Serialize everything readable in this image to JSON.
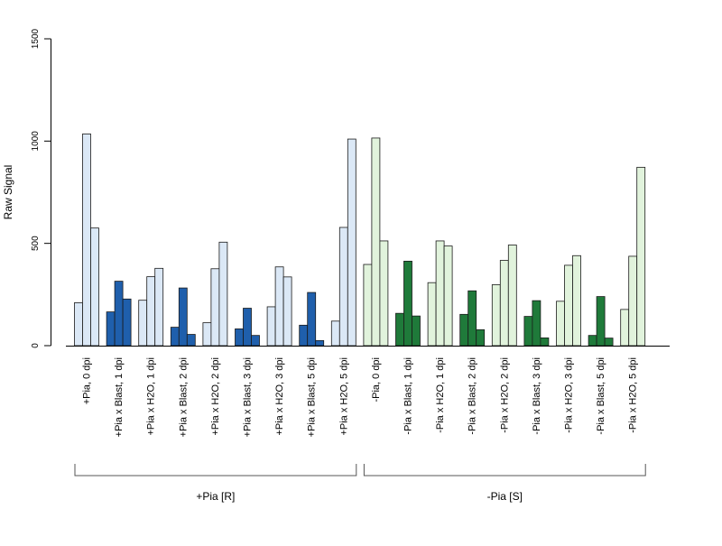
{
  "chart_data": {
    "type": "bar",
    "ylabel": "Raw Signal",
    "ylim": [
      0,
      1500
    ],
    "y_ticks": [
      0,
      500,
      1000,
      1500
    ],
    "grid": false,
    "legend": "none",
    "bars_per_category": 3,
    "colors": {
      "blue_light": "#dbe8f6",
      "blue_dark": "#1f5fac",
      "green_light": "#e1f3dc",
      "green_dark": "#1f7a3a",
      "bar_border": "#1a1a1a"
    },
    "categories": [
      "+Pia, 0 dpi",
      "+Pia x Blast, 1 dpi",
      "+Pia x H2O, 1 dpi",
      "+Pia x Blast, 2 dpi",
      "+Pia x H2O, 2 dpi",
      "+Pia x Blast, 3 dpi",
      "+Pia x H2O, 3 dpi",
      "+Pia x Blast, 5 dpi",
      "+Pia x H2O, 5 dpi",
      "-Pia, 0 dpi",
      "-Pia x Blast, 1 dpi",
      "-Pia x H2O, 1 dpi",
      "-Pia x Blast, 2 dpi",
      "-Pia x H2O, 2 dpi",
      "-Pia x Blast, 3 dpi",
      "-Pia x H2O, 3 dpi",
      "-Pia x Blast, 5 dpi",
      "-Pia x H2O, 5 dpi"
    ],
    "values": [
      [
        210,
        1035,
        575
      ],
      [
        165,
        315,
        228
      ],
      [
        222,
        337,
        378
      ],
      [
        90,
        282,
        55
      ],
      [
        112,
        376,
        506
      ],
      [
        82,
        183,
        50
      ],
      [
        190,
        385,
        336
      ],
      [
        100,
        260,
        25
      ],
      [
        120,
        578,
        1010
      ],
      [
        397,
        1015,
        512
      ],
      [
        158,
        413,
        145
      ],
      [
        308,
        512,
        487
      ],
      [
        153,
        268,
        78
      ],
      [
        298,
        417,
        492
      ],
      [
        143,
        220,
        38
      ],
      [
        217,
        393,
        440
      ],
      [
        50,
        240,
        37
      ],
      [
        177,
        437,
        872
      ]
    ],
    "bar_colors": [
      "blue_light",
      "blue_dark",
      "blue_light",
      "blue_dark",
      "blue_light",
      "blue_dark",
      "blue_light",
      "blue_dark",
      "blue_light",
      "green_light",
      "green_dark",
      "green_light",
      "green_dark",
      "green_light",
      "green_dark",
      "green_light",
      "green_dark",
      "green_light"
    ],
    "groups": [
      {
        "label": "+Pia [R]",
        "first_category": 0,
        "last_category": 8
      },
      {
        "label": "-Pia [S]",
        "first_category": 9,
        "last_category": 17
      }
    ]
  }
}
